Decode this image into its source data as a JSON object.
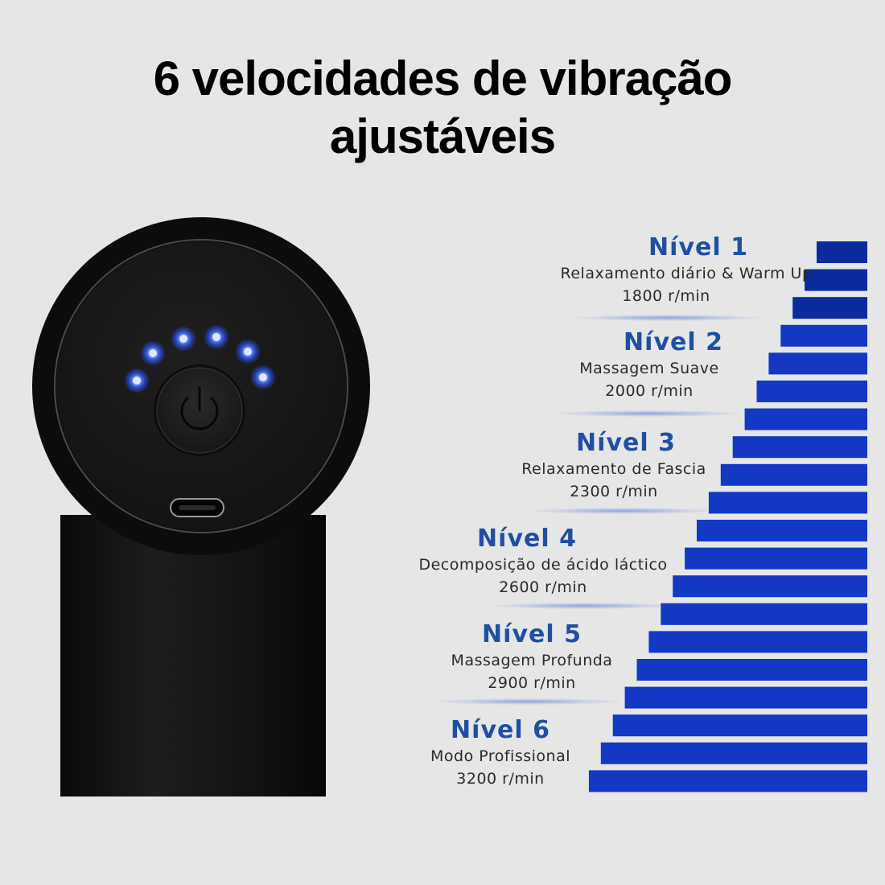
{
  "title": {
    "line1": "6 velocidades de vibração",
    "line2": "ajustáveis"
  },
  "colors": {
    "bar": "#1238c4",
    "bar_dark": "#0b2a9e",
    "level_name": "#1f4fa3",
    "led": "#3b6bff",
    "device": "#111111"
  },
  "device": {
    "power_icon": "power-icon",
    "port_icon": "usb-c-port-icon",
    "led_count": 6
  },
  "levels": [
    {
      "name": "Nível 1",
      "desc": "Relaxamento diário & Warm Up",
      "rpm": "1800 r/min"
    },
    {
      "name": "Nível 2",
      "desc": "Massagem Suave",
      "rpm": "2000 r/min"
    },
    {
      "name": "Nível 3",
      "desc": "Relaxamento de Fascia",
      "rpm": "2300 r/min"
    },
    {
      "name": "Nível 4",
      "desc": "Decomposição de ácido láctico",
      "rpm": "2600 r/min"
    },
    {
      "name": "Nível 5",
      "desc": "Massagem Profunda",
      "rpm": "2900 r/min"
    },
    {
      "name": "Nível 6",
      "desc": "Modo Profissional",
      "rpm": "3200 r/min"
    }
  ]
}
